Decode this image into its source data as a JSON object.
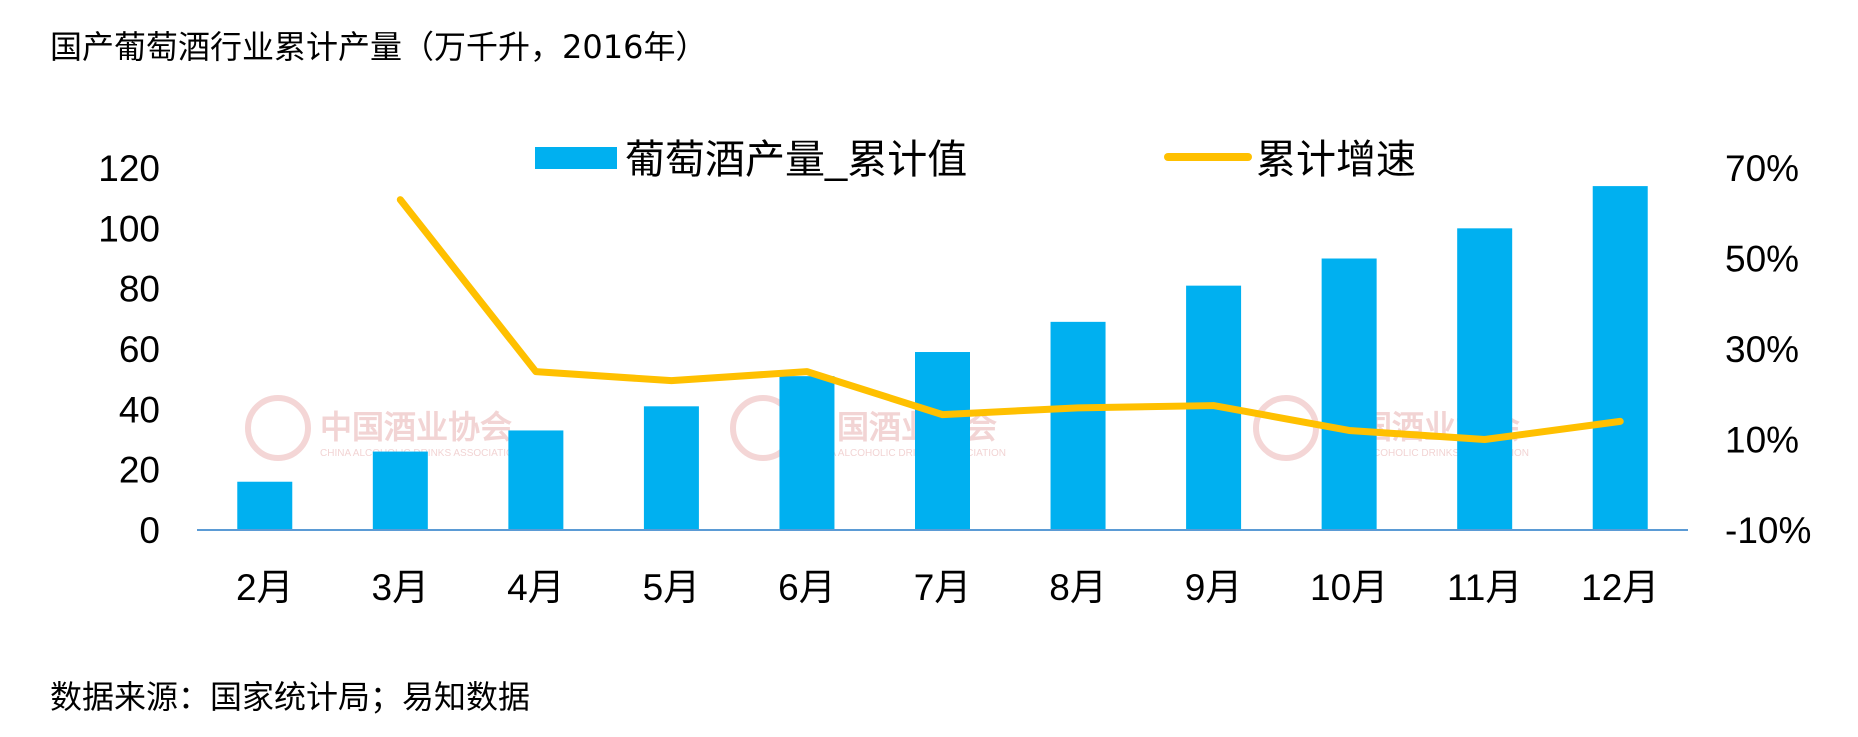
{
  "title": "国产葡萄酒行业累计产量（万千升，2016年）",
  "source": "数据来源：国家统计局；易知数据",
  "watermark": {
    "cn": "中国酒业协会",
    "en": "CHINA ALCOHOLIC DRINKS ASSOCIATION"
  },
  "chart_data": {
    "type": "bar",
    "categories": [
      "2月",
      "3月",
      "4月",
      "5月",
      "6月",
      "7月",
      "8月",
      "9月",
      "10月",
      "11月",
      "12月"
    ],
    "series": [
      {
        "name": "葡萄酒产量_累计值",
        "type": "bar",
        "axis": "left",
        "color": "#00b0f0",
        "values": [
          16,
          26,
          33,
          41,
          51,
          59,
          69,
          81,
          90,
          100,
          114
        ]
      },
      {
        "name": "累计增速",
        "type": "line",
        "axis": "right",
        "color": "#ffc000",
        "values": [
          null,
          63,
          25,
          23,
          25,
          15.5,
          17,
          17.5,
          12,
          10,
          14
        ]
      }
    ],
    "y_left": {
      "ylim": [
        0,
        120
      ],
      "ticks": [
        "0",
        "20",
        "40",
        "60",
        "80",
        "100",
        "120"
      ]
    },
    "y_right": {
      "ylim": [
        -10,
        70
      ],
      "ticks": [
        "-10%",
        "10%",
        "30%",
        "50%",
        "70%"
      ]
    },
    "legend": "top-center",
    "grid": false
  }
}
